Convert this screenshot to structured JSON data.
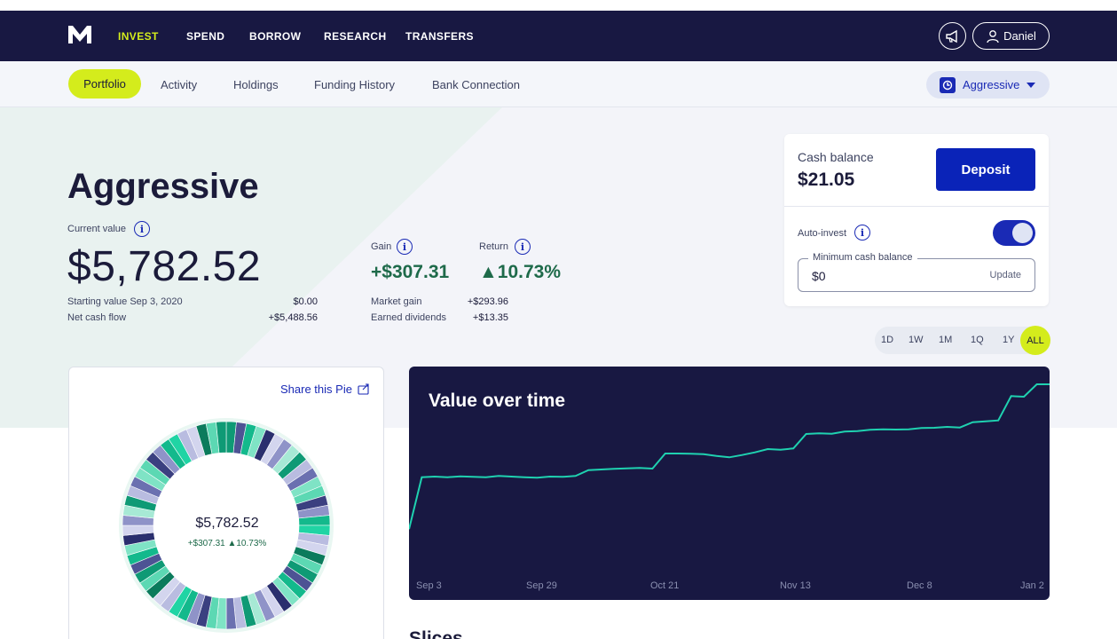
{
  "nav": {
    "items": [
      "INVEST",
      "SPEND",
      "BORROW",
      "RESEARCH",
      "TRANSFERS"
    ],
    "user_name": "Daniel"
  },
  "subnav": {
    "tabs": [
      "Portfolio",
      "Activity",
      "Holdings",
      "Funding History",
      "Bank Connection"
    ],
    "pie_selector": "Aggressive"
  },
  "portfolio": {
    "title": "Aggressive",
    "current_value_label": "Current value",
    "current_value": "$5,782.52",
    "starting_value_label": "Starting value Sep 3, 2020",
    "starting_value": "$0.00",
    "net_cash_flow_label": "Net cash flow",
    "net_cash_flow": "+$5,488.56",
    "gain_label": "Gain",
    "gain": "+$307.31",
    "return_label": "Return",
    "return": "▲10.73%",
    "market_gain_label": "Market gain",
    "market_gain": "+$293.96",
    "earned_dividends_label": "Earned dividends",
    "earned_dividends": "+$13.35"
  },
  "cash": {
    "label": "Cash balance",
    "value": "$21.05",
    "deposit_label": "Deposit",
    "auto_invest_label": "Auto-invest",
    "auto_invest_on": true,
    "min_cash_label": "Minimum cash balance",
    "min_cash_value": "$0",
    "update_label": "Update"
  },
  "ranges": [
    "1D",
    "1W",
    "1M",
    "1Q",
    "1Y",
    "ALL"
  ],
  "range_selected": "ALL",
  "pie": {
    "share_label": "Share this Pie",
    "center_value": "$5,782.52",
    "center_change": "+$307.31 ▲10.73%"
  },
  "colors": {
    "navy": "#181842",
    "accent": "#d4ec1c",
    "brand_blue": "#0a23b8",
    "line": "#1fd1b0"
  },
  "chart_data": {
    "type": "line",
    "title": "Value over time",
    "xlabel": "",
    "ylabel": "",
    "x_ticks": [
      "Sep 3",
      "Sep 29",
      "Oct 21",
      "Nov 13",
      "Dec 8",
      "Jan 2"
    ],
    "ylim": [
      0,
      6000
    ],
    "series": [
      {
        "values": [
          1100,
          2860,
          2880,
          2860,
          2890,
          2870,
          2860,
          2900,
          2880,
          2860,
          2840,
          2880,
          2870,
          2900,
          3100,
          3120,
          3140,
          3160,
          3170,
          3150,
          3660,
          3660,
          3650,
          3640,
          3580,
          3530,
          3610,
          3700,
          3810,
          3790,
          3830,
          4320,
          4340,
          4330,
          4400,
          4420,
          4460,
          4480,
          4470,
          4480,
          4520,
          4530,
          4560,
          4540,
          4720,
          4750,
          4780,
          5600,
          5580,
          6000,
          6000
        ]
      }
    ]
  },
  "sections": {
    "slices_title": "Slices"
  }
}
